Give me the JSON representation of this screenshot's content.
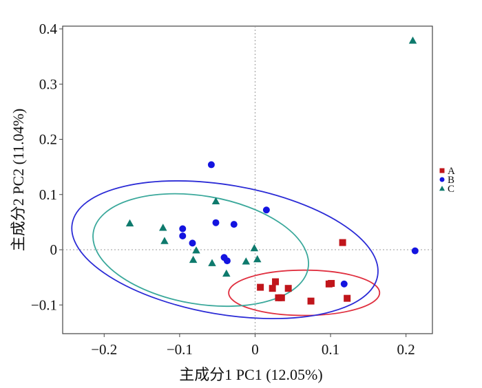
{
  "chart_data": {
    "type": "scatter",
    "title": "",
    "xlabel": "主成分1 PC1 (12.05%)",
    "ylabel": "主成分2 PC2 (11.04%)",
    "xlim": [
      -0.255,
      0.235
    ],
    "ylim": [
      -0.152,
      0.405
    ],
    "xticks": [
      -0.2,
      -0.1,
      0,
      0.1,
      0.2
    ],
    "xtick_labels": [
      "−0.2",
      "−0.1",
      "0",
      "0.1",
      "0.2"
    ],
    "yticks": [
      -0.1,
      0,
      0.1,
      0.2,
      0.3,
      0.4
    ],
    "ytick_labels": [
      "−0.1",
      "0",
      "0.1",
      "0.2",
      "0.3",
      "0.4"
    ],
    "grid": false,
    "reference_lines": {
      "x": 0,
      "y": 0,
      "style": "dotted"
    },
    "legend_position": "right",
    "series": [
      {
        "name": "A",
        "marker": "square",
        "color": "#c0151b",
        "points": [
          [
            0.007,
            -0.068
          ],
          [
            0.023,
            -0.07
          ],
          [
            0.027,
            -0.058
          ],
          [
            0.031,
            -0.087
          ],
          [
            0.035,
            -0.087
          ],
          [
            0.044,
            -0.07
          ],
          [
            0.074,
            -0.093
          ],
          [
            0.098,
            -0.062
          ],
          [
            0.101,
            -0.061
          ],
          [
            0.116,
            0.013
          ],
          [
            0.122,
            -0.088
          ]
        ],
        "ellipse": {
          "center": [
            0.065,
            -0.078
          ],
          "radii": [
            0.1,
            0.041
          ],
          "angle_deg": 0,
          "color": "#e03040"
        }
      },
      {
        "name": "B",
        "marker": "circle",
        "color": "#1414e0",
        "points": [
          [
            -0.058,
            0.154
          ],
          [
            0.015,
            0.072
          ],
          [
            -0.052,
            0.049
          ],
          [
            -0.028,
            0.046
          ],
          [
            -0.096,
            0.038
          ],
          [
            -0.096,
            0.025
          ],
          [
            -0.083,
            0.012
          ],
          [
            -0.041,
            -0.014
          ],
          [
            -0.037,
            -0.02
          ],
          [
            0.118,
            -0.062
          ],
          [
            0.212,
            -0.002
          ]
        ],
        "ellipse": {
          "center": [
            -0.04,
            0.0
          ],
          "radii": [
            0.2053,
            0.1171
          ],
          "angle_deg": 9.7,
          "color": "#2b2bd6"
        }
      },
      {
        "name": "C",
        "marker": "triangle",
        "color": "#0e7a6d",
        "points": [
          [
            0.209,
            0.379
          ],
          [
            -0.052,
            0.088
          ],
          [
            -0.166,
            0.048
          ],
          [
            -0.122,
            0.04
          ],
          [
            -0.12,
            0.016
          ],
          [
            -0.078,
            -0.001
          ],
          [
            -0.001,
            0.003
          ],
          [
            -0.082,
            -0.018
          ],
          [
            -0.057,
            -0.024
          ],
          [
            -0.012,
            -0.021
          ],
          [
            0.003,
            -0.017
          ],
          [
            -0.038,
            -0.043
          ]
        ],
        "ellipse": {
          "center": [
            -0.072,
            -0.0005
          ],
          "radii": [
            0.1443,
            0.0979
          ],
          "angle_deg": 9.5,
          "color": "#3aa89b"
        }
      }
    ]
  }
}
